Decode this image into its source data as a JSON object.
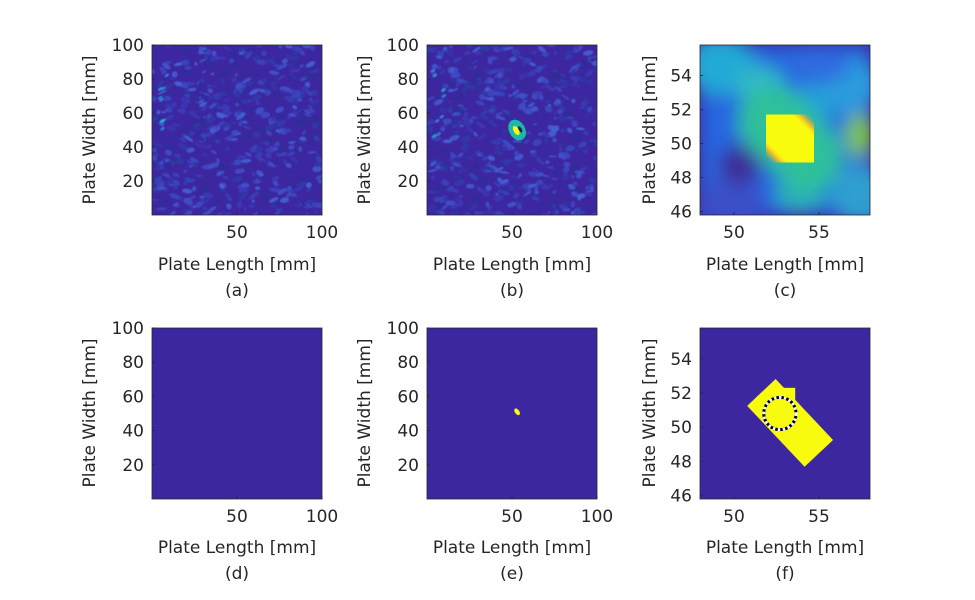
{
  "colors": {
    "background": "#3d27a0",
    "bright": "#f9fb0e",
    "mid_green": "#1ac7a9",
    "cyan": "#26b4d9",
    "orange": "#f0a830",
    "dotted_circle": "#ffffff"
  },
  "chart_data": [
    {
      "id": "a",
      "type": "heatmap",
      "caption": "(a)",
      "xlabel": "Plate Length [mm]",
      "ylabel": "Plate Width [mm]",
      "xlim": [
        0,
        100
      ],
      "ylim": [
        0,
        100
      ],
      "xticks": [
        50,
        100
      ],
      "yticks": [
        20,
        40,
        60,
        80,
        100
      ],
      "description_field": "low-amplitude noise texture",
      "hotspots": []
    },
    {
      "id": "b",
      "type": "heatmap",
      "caption": "(b)",
      "xlabel": "Plate Length [mm]",
      "ylabel": "Plate Width [mm]",
      "xlim": [
        0,
        100
      ],
      "ylim": [
        0,
        100
      ],
      "xticks": [
        50,
        100
      ],
      "yticks": [
        20,
        40,
        60,
        80,
        100
      ],
      "hotspots": [
        {
          "x": 53,
          "y": 50,
          "radius": 3
        }
      ]
    },
    {
      "id": "c",
      "type": "heatmap",
      "caption": "(c)",
      "xlabel": "Plate Length [mm]",
      "ylabel": "Plate Width [mm]",
      "xlim": [
        48,
        58
      ],
      "ylim": [
        45.8,
        55.8
      ],
      "xticks": [
        50,
        55
      ],
      "yticks": [
        46,
        48,
        50,
        52,
        54
      ],
      "hotspots": [
        {
          "x1": 52.3,
          "y1": 51.3,
          "x2": 54.3,
          "y2": 49.3,
          "radius": 1.3
        }
      ]
    },
    {
      "id": "d",
      "type": "heatmap",
      "caption": "(d)",
      "xlabel": "Plate Length [mm]",
      "ylabel": "Plate Width [mm]",
      "xlim": [
        0,
        100
      ],
      "ylim": [
        0,
        100
      ],
      "xticks": [
        50,
        100
      ],
      "yticks": [
        20,
        40,
        60,
        80,
        100
      ],
      "hotspots": []
    },
    {
      "id": "e",
      "type": "heatmap",
      "caption": "(e)",
      "xlabel": "Plate Length [mm]",
      "ylabel": "Plate Width [mm]",
      "xlim": [
        0,
        100
      ],
      "ylim": [
        0,
        100
      ],
      "xticks": [
        50,
        100
      ],
      "yticks": [
        20,
        40,
        60,
        80,
        100
      ],
      "hotspots": [
        {
          "x": 53,
          "y": 51,
          "radius": 1.6
        }
      ]
    },
    {
      "id": "f",
      "type": "heatmap",
      "caption": "(f)",
      "xlabel": "Plate Length [mm]",
      "ylabel": "Plate Width [mm]",
      "xlim": [
        48,
        58
      ],
      "ylim": [
        45.8,
        55.8
      ],
      "xticks": [
        50,
        55
      ],
      "yticks": [
        46,
        48,
        50,
        52,
        54
      ],
      "hotspots": [
        {
          "x1": 52.4,
          "y1": 51.2,
          "x2": 54.2,
          "y2": 49.3,
          "radius": 1.15
        }
      ],
      "dotted_circle": {
        "x": 52.7,
        "y": 50.8,
        "r": 0.95
      }
    }
  ]
}
